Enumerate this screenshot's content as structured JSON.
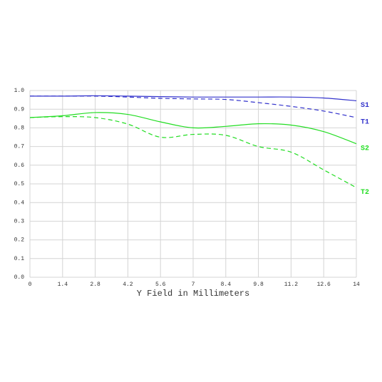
{
  "chart_data": {
    "type": "line",
    "x_label": "Y Field in Millimeters",
    "x": [
      0,
      1.4,
      2.8,
      4.2,
      5.6,
      7,
      8.4,
      9.8,
      11.2,
      12.6,
      14
    ],
    "series": [
      {
        "name": "S1",
        "color": "#3333cc",
        "dash": false,
        "values": [
          0.97,
          0.97,
          0.972,
          0.97,
          0.967,
          0.965,
          0.965,
          0.965,
          0.965,
          0.96,
          0.945
        ]
      },
      {
        "name": "T1",
        "color": "#3333cc",
        "dash": true,
        "values": [
          0.97,
          0.97,
          0.97,
          0.965,
          0.958,
          0.955,
          0.952,
          0.935,
          0.915,
          0.89,
          0.855
        ]
      },
      {
        "name": "S2",
        "color": "#22dd22",
        "dash": false,
        "values": [
          0.855,
          0.865,
          0.882,
          0.872,
          0.832,
          0.8,
          0.808,
          0.822,
          0.815,
          0.78,
          0.715
        ]
      },
      {
        "name": "T2",
        "color": "#22dd22",
        "dash": true,
        "values": [
          0.855,
          0.86,
          0.855,
          0.82,
          0.75,
          0.765,
          0.76,
          0.7,
          0.67,
          0.575,
          0.48
        ]
      }
    ],
    "xlim": [
      0,
      14
    ],
    "ylim": [
      0,
      1
    ],
    "xticks": [
      0,
      1.4,
      2.8,
      4.2,
      5.6,
      7,
      8.4,
      9.8,
      11.2,
      12.6,
      14
    ],
    "yticks": [
      {
        "value": 0,
        "label": "0.0"
      },
      0.1,
      0.2,
      0.3,
      0.4,
      0.5,
      0.6,
      0.7,
      0.8,
      0.9,
      {
        "value": 1,
        "label": "1.0"
      }
    ],
    "grid": true
  }
}
